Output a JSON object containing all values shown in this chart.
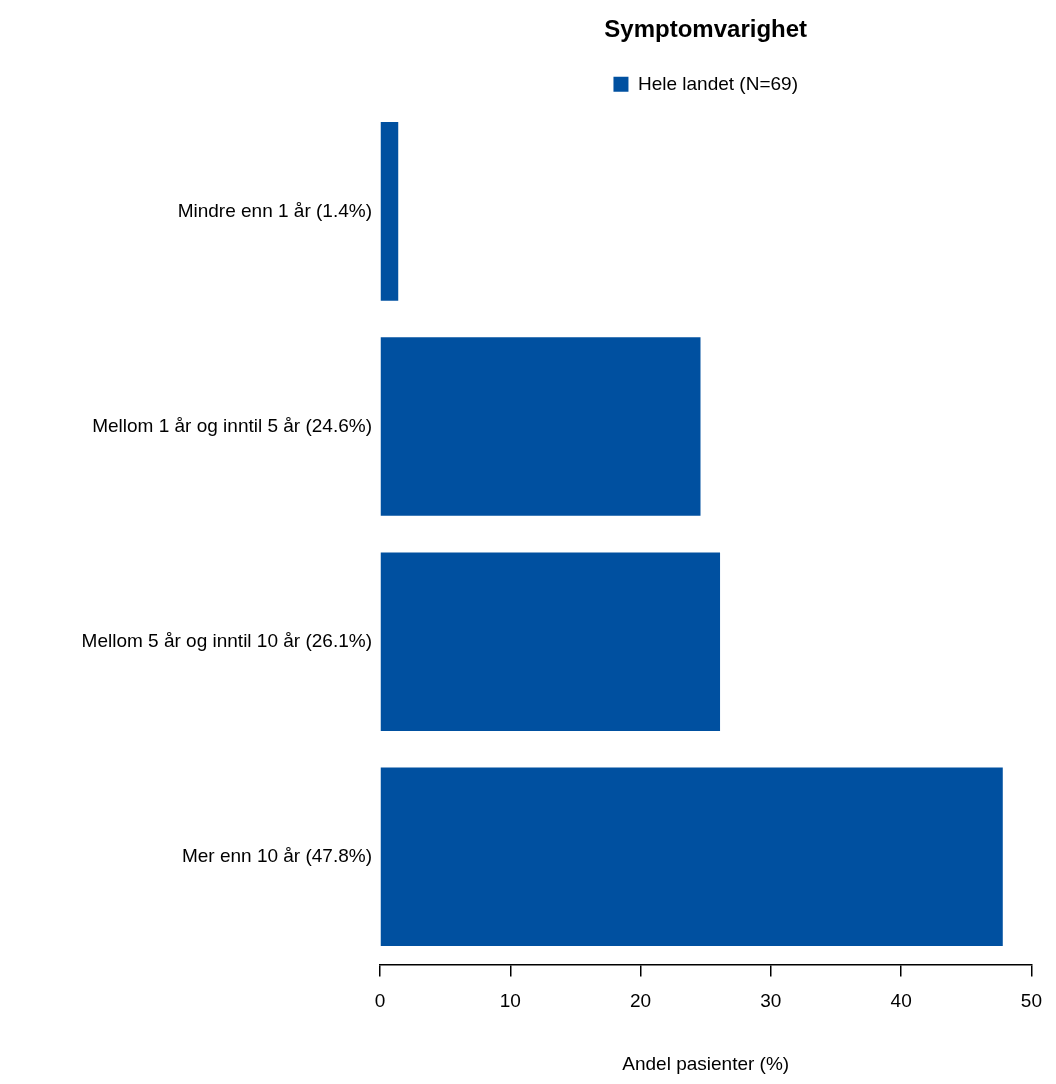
{
  "chart_data": {
    "type": "bar",
    "orientation": "horizontal",
    "title": "Symptomvarighet",
    "xlabel": "Andel pasienter (%)",
    "categories": [
      "Mindre enn 1 år (1.4%)",
      "Mellom 1 år og inntil 5 år (24.6%)",
      "Mellom 5 år og inntil 10 år (26.1%)",
      "Mer enn 10 år (47.8%)"
    ],
    "series": [
      {
        "name": "Hele landet (N=69)",
        "color": "#0050a0",
        "values": [
          1.4,
          24.6,
          26.1,
          47.8
        ]
      }
    ],
    "xlim": [
      0,
      50
    ],
    "xticks": [
      0,
      10,
      20,
      30,
      40,
      50
    ],
    "grid": false,
    "legend": "top"
  }
}
